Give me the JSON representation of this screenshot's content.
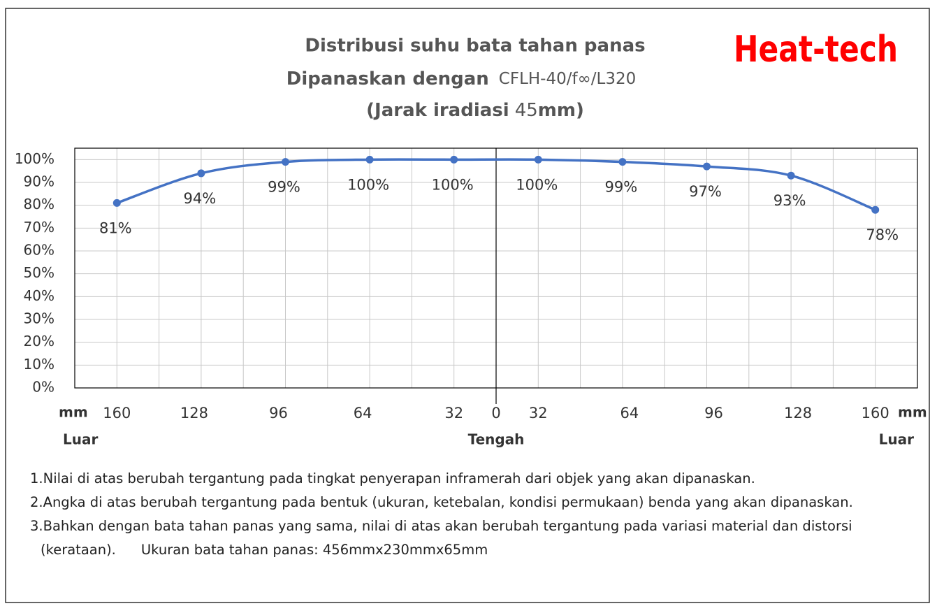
{
  "chart_data": {
    "type": "line",
    "title": "Distribusi suhu bata tahan panas",
    "subtitle_bold": "Dipanaskan dengan",
    "subtitle_model": "CFLH-40/f∞/L320",
    "distance_open": "(Jarak iradiasi",
    "distance_value": "45",
    "distance_close": "mm)",
    "logo": "Heat-tech",
    "categories": [
      "160",
      "128",
      "96",
      "64",
      "32",
      "32",
      "64",
      "96",
      "128",
      "160"
    ],
    "center_tick": "0",
    "x_unit": "mm",
    "left_label": "Luar",
    "center_label": "Tengah",
    "right_label": "Luar",
    "series": [
      {
        "name": "Distribusi suhu",
        "color": "#4472c4",
        "values": [
          81,
          94,
          99,
          100,
          100,
          100,
          99,
          97,
          93,
          78
        ],
        "value_labels": [
          "81%",
          "94%",
          "99%",
          "100%",
          "100%",
          "100%",
          "99%",
          "97%",
          "93%",
          "78%"
        ]
      }
    ],
    "ylim": [
      0,
      105
    ],
    "yticks": [
      {
        "value": 0,
        "label": "0%"
      },
      {
        "value": 10,
        "label": "10%"
      },
      {
        "value": 20,
        "label": "20%"
      },
      {
        "value": 30,
        "label": "30%"
      },
      {
        "value": 40,
        "label": "40%"
      },
      {
        "value": 50,
        "label": "50%"
      },
      {
        "value": 60,
        "label": "60%"
      },
      {
        "value": 70,
        "label": "70%"
      },
      {
        "value": 80,
        "label": "80%"
      },
      {
        "value": 90,
        "label": "90%"
      },
      {
        "value": 100,
        "label": "100%"
      }
    ],
    "grid": true
  },
  "notes": [
    "1.Nilai di atas berubah tergantung pada tingkat penyerapan inframerah dari objek yang akan dipanaskan.",
    "2.Angka di atas berubah tergantung pada bentuk (ukuran, ketebalan, kondisi permukaan) benda yang akan dipanaskan.",
    "3.Bahkan dengan bata tahan panas yang sama, nilai di atas akan berubah tergantung pada variasi material dan distorsi (kerataan)."
  ],
  "size_note": "Ukuran bata tahan panas: 456mmx230mmx65mm"
}
